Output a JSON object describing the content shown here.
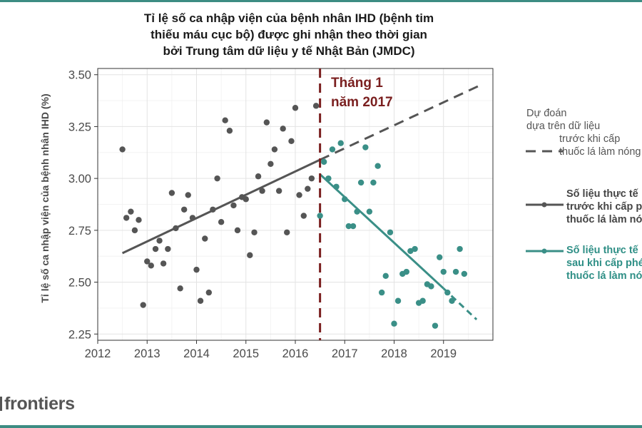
{
  "chart_data": {
    "type": "scatter",
    "title_lines": [
      "Tỉ lệ số ca nhập viện của bệnh nhân IHD (bệnh tim",
      "thiếu máu cục bộ) được ghi nhận theo thời gian",
      "bởi Trung tâm dữ liệu y tế Nhật Bản (JMDC)"
    ],
    "ylabel": "Tỉ lệ số ca nhập viện của bệnh nhân IHD (%)",
    "xlabel": "",
    "xlim": [
      2012,
      2020
    ],
    "ylim": [
      2.22,
      3.53
    ],
    "x_ticks": [
      "2012",
      "2013",
      "2014",
      "2015",
      "2016",
      "2017",
      "2018",
      "2019"
    ],
    "y_ticks": [
      "2.25",
      "2.50",
      "2.75",
      "3.00",
      "3.25",
      "3.50"
    ],
    "grid": true,
    "intervention": {
      "x": 2016.5,
      "label_lines": [
        "Tháng 1",
        "năm 2017"
      ],
      "color": "#7a1f1f"
    },
    "series": [
      {
        "name": "before",
        "color": "#555555",
        "points": [
          [
            2012.5,
            3.14
          ],
          [
            2012.58,
            2.81
          ],
          [
            2012.67,
            2.84
          ],
          [
            2012.75,
            2.75
          ],
          [
            2012.83,
            2.8
          ],
          [
            2012.92,
            2.39
          ],
          [
            2013.0,
            2.6
          ],
          [
            2013.08,
            2.58
          ],
          [
            2013.17,
            2.66
          ],
          [
            2013.25,
            2.7
          ],
          [
            2013.33,
            2.59
          ],
          [
            2013.42,
            2.66
          ],
          [
            2013.5,
            2.93
          ],
          [
            2013.58,
            2.76
          ],
          [
            2013.67,
            2.47
          ],
          [
            2013.75,
            2.85
          ],
          [
            2013.83,
            2.92
          ],
          [
            2013.92,
            2.81
          ],
          [
            2014.0,
            2.56
          ],
          [
            2014.08,
            2.41
          ],
          [
            2014.17,
            2.71
          ],
          [
            2014.25,
            2.45
          ],
          [
            2014.33,
            2.85
          ],
          [
            2014.42,
            3.0
          ],
          [
            2014.5,
            2.79
          ],
          [
            2014.58,
            3.28
          ],
          [
            2014.67,
            3.23
          ],
          [
            2014.75,
            2.87
          ],
          [
            2014.83,
            2.75
          ],
          [
            2014.92,
            2.91
          ],
          [
            2015.0,
            2.9
          ],
          [
            2015.08,
            2.63
          ],
          [
            2015.17,
            2.74
          ],
          [
            2015.25,
            3.01
          ],
          [
            2015.33,
            2.94
          ],
          [
            2015.42,
            3.27
          ],
          [
            2015.5,
            3.07
          ],
          [
            2015.58,
            3.14
          ],
          [
            2015.67,
            2.94
          ],
          [
            2015.75,
            3.24
          ],
          [
            2015.83,
            2.74
          ],
          [
            2015.92,
            3.18
          ],
          [
            2016.0,
            3.34
          ],
          [
            2016.08,
            2.92
          ],
          [
            2016.17,
            2.82
          ],
          [
            2016.25,
            2.95
          ],
          [
            2016.33,
            3.0
          ],
          [
            2016.42,
            3.35
          ]
        ]
      },
      {
        "name": "after",
        "color": "#3a8f87",
        "points": [
          [
            2016.5,
            2.82
          ],
          [
            2016.58,
            3.08
          ],
          [
            2016.67,
            3.0
          ],
          [
            2016.75,
            3.14
          ],
          [
            2016.83,
            2.96
          ],
          [
            2016.92,
            3.17
          ],
          [
            2017.0,
            2.9
          ],
          [
            2017.08,
            2.77
          ],
          [
            2017.17,
            2.77
          ],
          [
            2017.25,
            2.84
          ],
          [
            2017.33,
            2.98
          ],
          [
            2017.42,
            3.15
          ],
          [
            2017.5,
            2.84
          ],
          [
            2017.58,
            2.98
          ],
          [
            2017.67,
            3.06
          ],
          [
            2017.75,
            2.45
          ],
          [
            2017.83,
            2.53
          ],
          [
            2017.92,
            2.74
          ],
          [
            2018.0,
            2.3
          ],
          [
            2018.08,
            2.41
          ],
          [
            2018.17,
            2.54
          ],
          [
            2018.25,
            2.55
          ],
          [
            2018.33,
            2.65
          ],
          [
            2018.42,
            2.66
          ],
          [
            2018.5,
            2.4
          ],
          [
            2018.58,
            2.41
          ],
          [
            2018.67,
            2.49
          ],
          [
            2018.75,
            2.48
          ],
          [
            2018.83,
            2.29
          ],
          [
            2018.92,
            2.62
          ],
          [
            2019.0,
            2.55
          ],
          [
            2019.08,
            2.45
          ],
          [
            2019.17,
            2.41
          ],
          [
            2019.25,
            2.55
          ],
          [
            2019.33,
            2.66
          ],
          [
            2019.42,
            2.54
          ]
        ]
      }
    ],
    "lines": [
      {
        "name": "trend-before",
        "from": [
          2012.5,
          2.64
        ],
        "to": [
          2016.5,
          3.09
        ],
        "style": "solid",
        "color": "#555555"
      },
      {
        "name": "trend-predicted",
        "from": [
          2016.5,
          3.09
        ],
        "to": [
          2019.75,
          3.45
        ],
        "style": "dashed",
        "color": "#555555"
      },
      {
        "name": "trend-after",
        "from": [
          2016.5,
          3.02
        ],
        "to": [
          2019.0,
          2.47
        ],
        "style": "solid",
        "color": "#3a8f87"
      },
      {
        "name": "trend-after-extension",
        "from": [
          2019.0,
          2.47
        ],
        "to": [
          2019.67,
          2.32
        ],
        "style": "dashed",
        "color": "#3a8f87"
      }
    ],
    "legend": {
      "placement": "right",
      "entries": [
        {
          "key": "predicted",
          "lines": [
            "Dự đoán",
            "dựa trên dữ liệu",
            "trước khi cấp",
            "thuốc lá làm nóng"
          ]
        },
        {
          "key": "actual_before",
          "lines": [
            "Số liệu thực tế",
            "trước khi cấp phép",
            "thuốc lá làm nóng"
          ]
        },
        {
          "key": "actual_after",
          "lines": [
            "Số liệu thực tế",
            "sau khi cấp phép",
            "thuốc lá làm nóng"
          ]
        }
      ]
    }
  },
  "brand": {
    "logo_text": "frontiers"
  }
}
